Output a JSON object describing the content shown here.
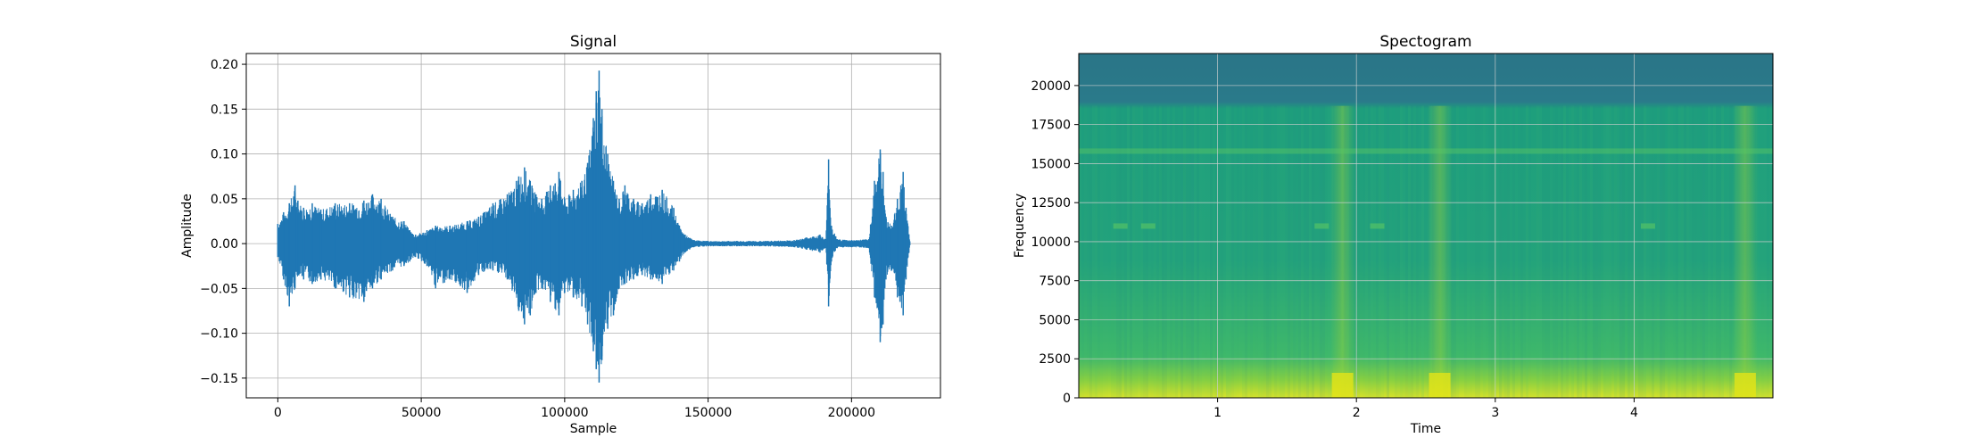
{
  "chart_data": [
    {
      "type": "line",
      "title": "Signal",
      "xlabel": "Sample",
      "ylabel": "Amplitude",
      "xlim": [
        -11000,
        231000
      ],
      "ylim": [
        -0.172,
        0.212
      ],
      "xticks": [
        0,
        50000,
        100000,
        150000,
        200000
      ],
      "xtick_labels": [
        "0",
        "50000",
        "100000",
        "150000",
        "200000"
      ],
      "yticks": [
        -0.15,
        -0.1,
        -0.05,
        0.0,
        0.05,
        0.1,
        0.15,
        0.2
      ],
      "ytick_labels": [
        "−0.15",
        "−0.10",
        "−0.05",
        "0.00",
        "0.05",
        "0.10",
        "0.15",
        "0.20"
      ],
      "grid": true,
      "color": "#1f77b4",
      "series": [
        {
          "x": [
            0,
            2000,
            4000,
            6000,
            7000,
            9000,
            12000,
            15000,
            20000,
            25000,
            30000,
            33000,
            36000,
            40000,
            44000,
            46000,
            48000,
            52000,
            55000,
            60000,
            66000,
            70000,
            75000,
            80000,
            84000,
            86000,
            88000,
            90000,
            92000,
            95000,
            98000,
            100000,
            103000,
            106000,
            108000,
            110000,
            111000,
            112000,
            113000,
            115000,
            117000,
            119000,
            121000,
            124000,
            127000,
            130000,
            134000,
            138000,
            140000,
            142000,
            145000,
            150000,
            160000,
            170000,
            180000,
            189000,
            191000,
            192000,
            193000,
            195000,
            200000,
            206000,
            208000,
            210000,
            211000,
            212000,
            214000,
            216000,
            218000,
            219000,
            220500
          ],
          "upper": [
            0.022,
            0.035,
            0.045,
            0.065,
            0.048,
            0.04,
            0.045,
            0.038,
            0.045,
            0.045,
            0.048,
            0.055,
            0.05,
            0.03,
            0.025,
            0.015,
            0.01,
            0.015,
            0.02,
            0.02,
            0.025,
            0.03,
            0.045,
            0.055,
            0.075,
            0.085,
            0.07,
            0.055,
            0.05,
            0.065,
            0.08,
            0.05,
            0.06,
            0.07,
            0.09,
            0.14,
            0.17,
            0.193,
            0.15,
            0.1,
            0.07,
            0.05,
            0.065,
            0.05,
            0.045,
            0.055,
            0.06,
            0.04,
            0.02,
            0.01,
            0.004,
            0.003,
            0.003,
            0.003,
            0.004,
            0.01,
            0.005,
            0.094,
            0.02,
            0.005,
            0.004,
            0.005,
            0.07,
            0.105,
            0.08,
            0.03,
            0.02,
            0.05,
            0.08,
            0.04,
            0.0
          ],
          "lower": [
            -0.015,
            -0.04,
            -0.07,
            -0.05,
            -0.035,
            -0.04,
            -0.045,
            -0.04,
            -0.05,
            -0.06,
            -0.065,
            -0.05,
            -0.04,
            -0.03,
            -0.025,
            -0.02,
            -0.015,
            -0.025,
            -0.05,
            -0.04,
            -0.055,
            -0.035,
            -0.03,
            -0.04,
            -0.075,
            -0.09,
            -0.08,
            -0.055,
            -0.05,
            -0.065,
            -0.08,
            -0.055,
            -0.06,
            -0.07,
            -0.09,
            -0.12,
            -0.14,
            -0.155,
            -0.13,
            -0.095,
            -0.08,
            -0.05,
            -0.045,
            -0.04,
            -0.035,
            -0.04,
            -0.045,
            -0.03,
            -0.02,
            -0.01,
            -0.004,
            -0.003,
            -0.003,
            -0.003,
            -0.004,
            -0.01,
            -0.005,
            -0.07,
            -0.02,
            -0.005,
            -0.004,
            -0.005,
            -0.06,
            -0.11,
            -0.09,
            -0.04,
            -0.03,
            -0.06,
            -0.08,
            -0.04,
            0.0
          ]
        }
      ]
    },
    {
      "type": "heatmap",
      "title": "Spectogram",
      "xlabel": "Time",
      "ylabel": "Frequency",
      "xlim": [
        0.0,
        5.0
      ],
      "ylim": [
        0,
        22050
      ],
      "xticks": [
        1,
        2,
        3,
        4
      ],
      "xtick_labels": [
        "1",
        "2",
        "3",
        "4"
      ],
      "yticks": [
        0,
        2500,
        5000,
        7500,
        10000,
        12500,
        15000,
        17500,
        20000
      ],
      "ytick_labels": [
        "0",
        "2500",
        "5000",
        "7500",
        "10000",
        "12500",
        "15000",
        "17500",
        "20000"
      ],
      "grid": true,
      "colormap": "viridis",
      "colors": {
        "upper_band": "#2a7a8a",
        "mid": "#1f9e7a",
        "low_bright": "#d8e22a",
        "low_warm": "#8cd140"
      },
      "upper_band_cutoff_hz": 18700,
      "bright_time_columns": [
        1.9,
        2.6,
        4.8
      ],
      "horizontal_lines_hz": [
        15800,
        11000
      ]
    }
  ]
}
